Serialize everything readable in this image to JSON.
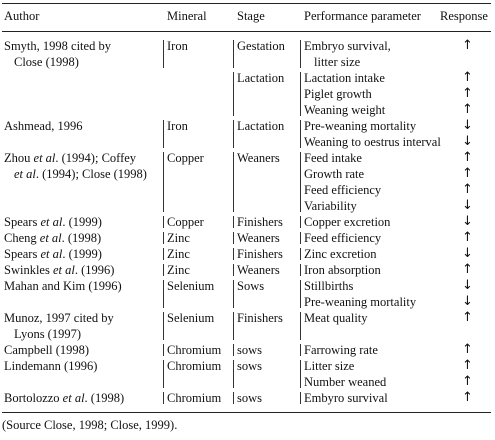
{
  "headers": {
    "author": "Author",
    "mineral": "Mineral",
    "stage": "Stage",
    "parameter": "Performance parameter",
    "response": "Response"
  },
  "rows": [
    {
      "author": [
        "Smyth, 1998 cited by",
        "Close (1998)"
      ],
      "mineral": "Iron",
      "stage": "Gestation",
      "params": [
        {
          "text": [
            "Embryo survival,",
            "litter size"
          ],
          "resp": "↑"
        }
      ]
    },
    {
      "author": [],
      "mineral": "",
      "stage": "Lactation",
      "params": [
        {
          "text": [
            "Lactation intake"
          ],
          "resp": "↑"
        },
        {
          "text": [
            "Piglet growth"
          ],
          "resp": "↑"
        },
        {
          "text": [
            "Weaning weight"
          ],
          "resp": "↑"
        }
      ]
    },
    {
      "author": [
        "Ashmead, 1996"
      ],
      "mineral": "Iron",
      "stage": "Lactation",
      "params": [
        {
          "text": [
            "Pre-weaning mortality"
          ],
          "resp": "↓"
        },
        {
          "text": [
            "Weaning to oestrus interval"
          ],
          "resp": "↓"
        }
      ]
    },
    {
      "author": [
        "Zhou <i>et al</i>. (1994); Coffey",
        "<i>et al</i>. (1994); Close (1998)"
      ],
      "mineral": "Copper",
      "stage": "Weaners",
      "params": [
        {
          "text": [
            "Feed intake"
          ],
          "resp": "↑"
        },
        {
          "text": [
            "Growth rate"
          ],
          "resp": "↑"
        },
        {
          "text": [
            "Feed efficiency"
          ],
          "resp": "↑"
        },
        {
          "text": [
            "Variability"
          ],
          "resp": "↓"
        }
      ]
    },
    {
      "author": [
        "Spears <i>et al</i>. (1999)"
      ],
      "mineral": "Copper",
      "stage": "Finishers",
      "params": [
        {
          "text": [
            "Copper excretion"
          ],
          "resp": "↓"
        }
      ]
    },
    {
      "author": [
        "Cheng <i>et al</i>. (1998)"
      ],
      "mineral": "Zinc",
      "stage": "Weaners",
      "params": [
        {
          "text": [
            "Feed efficiency"
          ],
          "resp": "↑"
        }
      ]
    },
    {
      "author": [
        "Spears <i>et al</i>. (1999)"
      ],
      "mineral": "Zinc",
      "stage": "Finishers",
      "params": [
        {
          "text": [
            "Zinc excretion"
          ],
          "resp": "↓"
        }
      ]
    },
    {
      "author": [
        "Swinkles <i>et al</i>. (1996)"
      ],
      "mineral": "Zinc",
      "stage": "Weaners",
      "params": [
        {
          "text": [
            "Iron absorption"
          ],
          "resp": "↑"
        }
      ]
    },
    {
      "author": [
        "Mahan and Kim (1996)"
      ],
      "mineral": "Selenium",
      "stage": "Sows",
      "params": [
        {
          "text": [
            "Stillbirths"
          ],
          "resp": "↓"
        },
        {
          "text": [
            "Pre-weaning mortality"
          ],
          "resp": "↓"
        }
      ]
    },
    {
      "author": [
        "Munoz, 1997 cited by",
        "Lyons (1997)"
      ],
      "mineral": "Selenium",
      "stage": "Finishers",
      "params": [
        {
          "text": [
            "Meat quality"
          ],
          "resp": "↑"
        }
      ]
    },
    {
      "author": [
        "Campbell (1998)"
      ],
      "mineral": "Chromium",
      "stage": "sows",
      "params": [
        {
          "text": [
            "Farrowing rate"
          ],
          "resp": "↑"
        }
      ]
    },
    {
      "author": [
        "Lindemann (1996)"
      ],
      "mineral": "Chromium",
      "stage": "sows",
      "params": [
        {
          "text": [
            "Litter size"
          ],
          "resp": "↑"
        },
        {
          "text": [
            "Number weaned"
          ],
          "resp": "↑"
        }
      ]
    },
    {
      "author": [
        "Bortolozzo <i>et al</i>. (1998)"
      ],
      "mineral": "Chromium",
      "stage": "sows",
      "params": [
        {
          "text": [
            "Embyro survival"
          ],
          "resp": "↑"
        }
      ]
    }
  ],
  "source": "(Source Close, 1998; Close, 1999)."
}
